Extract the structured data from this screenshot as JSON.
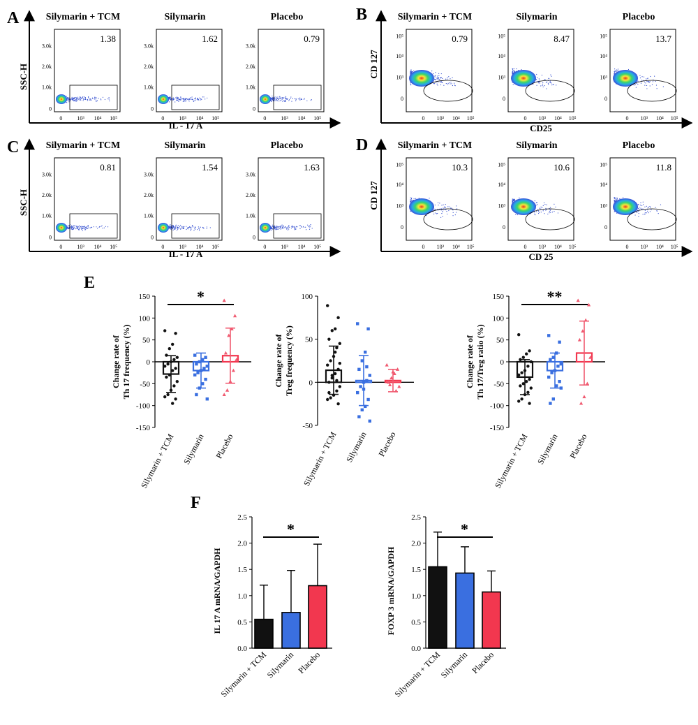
{
  "panel_labels": {
    "A": "A",
    "B": "B",
    "C": "C",
    "D": "D",
    "E": "E",
    "F": "F"
  },
  "flow": {
    "groups": [
      "Silymarin + TCM",
      "Silymarin",
      "Placebo"
    ],
    "il17_xlabel": "IL - 17 A",
    "il17_ylabel": "SSC-H",
    "il17_yticks": [
      "3.0k",
      "2.0k",
      "1.0k",
      "0"
    ],
    "treg_xlabel_overlap": "CD25",
    "treg_xlabel": "CD 25",
    "treg_ylabel": "CD 127",
    "x_ticks": [
      "0",
      "10³",
      "10⁴",
      "10⁵"
    ],
    "treg_yticks": [
      "10⁵",
      "10⁴",
      "10³",
      "0"
    ],
    "A": {
      "values": [
        "1.38",
        "1.62",
        "0.79"
      ]
    },
    "B": {
      "values": [
        "0.79",
        "8.47",
        "13.7"
      ]
    },
    "C": {
      "values": [
        "0.81",
        "1.54",
        "1.63"
      ]
    },
    "D": {
      "values": [
        "10.3",
        "10.6",
        "11.8"
      ]
    }
  },
  "colors": {
    "tcm": "#111111",
    "silymarin": "#3a6fe0",
    "placebo": "#f05a70",
    "placebo_bar": "#f2374f"
  },
  "chart_data": [
    {
      "type": "bar",
      "panel": "E",
      "ylabel": "Change rate of\nTh 17 frequency (%)",
      "ylim": [
        -150,
        150
      ],
      "yticks": [
        150,
        100,
        50,
        0,
        -50,
        -100,
        -150
      ],
      "categories": [
        "Silymarin + TCM",
        "Silymarin",
        "Placebo"
      ],
      "means": [
        -28,
        -20,
        14
      ],
      "sd": [
        42,
        40,
        63
      ],
      "points": [
        [
          71,
          65,
          40,
          30,
          15,
          10,
          5,
          0,
          -5,
          -10,
          -15,
          -20,
          -30,
          -35,
          -45,
          -55,
          -65,
          -75,
          -80,
          -85,
          -95
        ],
        [
          15,
          10,
          5,
          0,
          -5,
          -10,
          -15,
          -20,
          -25,
          -30,
          -40,
          -50,
          -60,
          -75,
          -85
        ],
        [
          140,
          105,
          75,
          60,
          20,
          5,
          -20,
          -45,
          -65,
          -75
        ]
      ],
      "significance": {
        "pair": [
          0,
          2
        ],
        "label": "*"
      }
    },
    {
      "type": "bar",
      "panel": "E",
      "ylabel": "Change rate of\nTreg frequency (%)",
      "ylim": [
        -50,
        100
      ],
      "yticks": [
        100,
        50,
        0,
        -50
      ],
      "categories": [
        "Silymarin + TCM",
        "Silymarin",
        "Placebo"
      ],
      "means": [
        14,
        2,
        2
      ],
      "sd": [
        28,
        29,
        13
      ],
      "points": [
        [
          89,
          75,
          62,
          60,
          50,
          45,
          40,
          30,
          25,
          20,
          15,
          10,
          5,
          0,
          -5,
          -10,
          -15,
          -18,
          -20,
          -25,
          35,
          8,
          -12,
          22,
          2
        ],
        [
          68,
          62,
          35,
          25,
          15,
          8,
          2,
          0,
          -5,
          -12,
          -20,
          -28,
          -32,
          -40,
          -45,
          18,
          -8
        ],
        [
          20,
          15,
          10,
          5,
          0,
          -5,
          -10,
          12,
          -3
        ]
      ],
      "significance": null
    },
    {
      "type": "bar",
      "panel": "E",
      "ylabel": "Change rate of\nTh 17/Treg ratio (%)",
      "ylim": [
        -150,
        150
      ],
      "yticks": [
        150,
        100,
        50,
        0,
        -50,
        -100,
        -150
      ],
      "categories": [
        "Silymarin + TCM",
        "Silymarin",
        "Placebo"
      ],
      "means": [
        -35,
        -20,
        20
      ],
      "sd": [
        40,
        40,
        73
      ],
      "points": [
        [
          62,
          25,
          18,
          10,
          5,
          0,
          -10,
          -20,
          -25,
          -30,
          -40,
          -45,
          -50,
          -55,
          -60,
          -70,
          -75,
          -85,
          -90,
          -95
        ],
        [
          60,
          45,
          20,
          10,
          5,
          -5,
          -10,
          -20,
          -25,
          -35,
          -45,
          -55,
          -85,
          -95,
          -60
        ],
        [
          140,
          130,
          95,
          70,
          50,
          10,
          -50,
          -80,
          -95
        ]
      ],
      "significance": {
        "pair": [
          0,
          2
        ],
        "label": "**"
      }
    },
    {
      "type": "bar",
      "panel": "F",
      "ylabel": "IL 17 A mRNA/GAPDH",
      "ylim": [
        0,
        2.5
      ],
      "yticks": [
        "2.5",
        "2.0",
        "1.5",
        "1.0",
        "0.5",
        "0.0"
      ],
      "categories": [
        "Silymarin + TCM",
        "Silymarin",
        "Placebo"
      ],
      "values": [
        0.55,
        0.68,
        1.19
      ],
      "error": [
        0.65,
        0.8,
        0.79
      ],
      "significance": {
        "pair": [
          0,
          2
        ],
        "label": "*"
      }
    },
    {
      "type": "bar",
      "panel": "F",
      "ylabel": "FOXP 3 mRNA/GAPDH",
      "ylim": [
        0,
        2.5
      ],
      "yticks": [
        "2.5",
        "2.0",
        "1.5",
        "1.0",
        "0.5",
        "0.0"
      ],
      "categories": [
        "Silymarin + TCM",
        "Silymarin",
        "Placebo"
      ],
      "values": [
        1.55,
        1.43,
        1.07
      ],
      "error": [
        0.66,
        0.5,
        0.4
      ],
      "significance": {
        "pair": [
          0,
          2
        ],
        "label": "*"
      }
    }
  ]
}
